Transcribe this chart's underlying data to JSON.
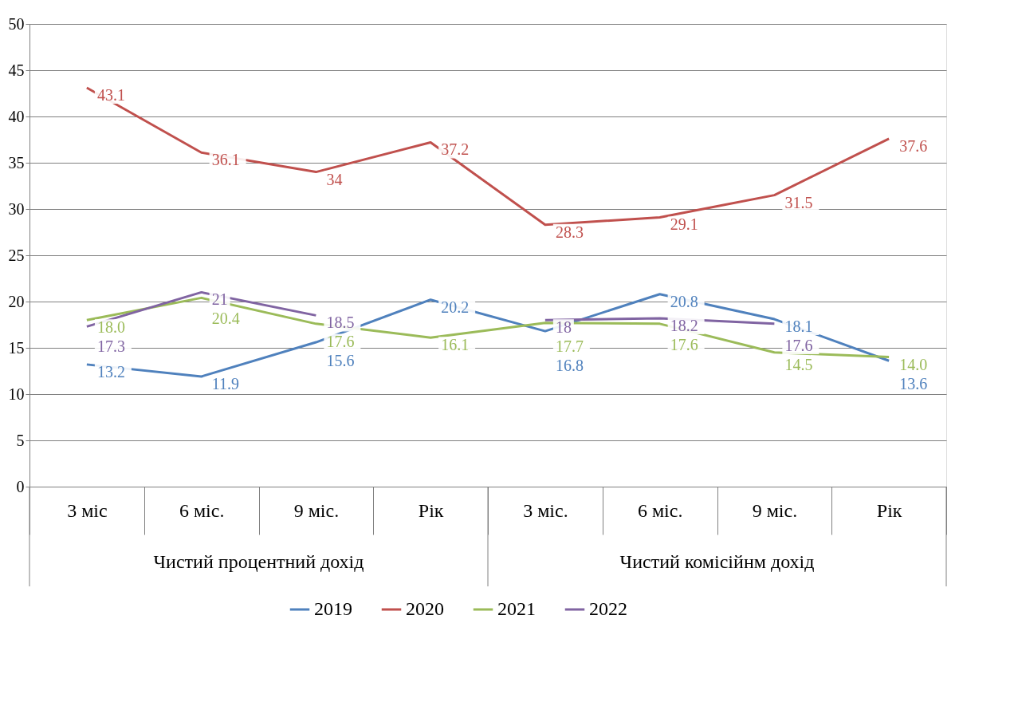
{
  "chart_data": {
    "type": "line",
    "categories": [
      "3 міс",
      "6 міс.",
      "9 міс.",
      "Рік",
      "3 міс.",
      "6 міс.",
      "9 міс.",
      "Рік"
    ],
    "series": [
      {
        "name": "2019",
        "color": "#4f81bd",
        "values": [
          13.2,
          11.9,
          15.6,
          20.2,
          16.8,
          20.8,
          18.1,
          13.6
        ],
        "value_labels": [
          "13.2",
          "11.9",
          "15.6",
          "20.2",
          "16.8",
          "20.8",
          "18.1",
          "13.6"
        ]
      },
      {
        "name": "2020",
        "color": "#c0504d",
        "values": [
          43.1,
          36.1,
          34,
          37.2,
          28.3,
          29.1,
          31.5,
          37.6
        ],
        "value_labels": [
          "43.1",
          "36.1",
          "34",
          "37.2",
          "28.3",
          "29.1",
          "31.5",
          "37.6"
        ]
      },
      {
        "name": "2021",
        "color": "#9bbb59",
        "values": [
          18.0,
          20.4,
          17.6,
          16.1,
          17.7,
          17.6,
          14.5,
          14.0
        ],
        "value_labels": [
          "18.0",
          "20.4",
          "17.6",
          "16.1",
          "17.7",
          "17.6",
          "14.5",
          "14.0"
        ]
      },
      {
        "name": "2022",
        "color": "#8064a2",
        "values": [
          17.3,
          21,
          18.5,
          null,
          18,
          18.2,
          17.6,
          null
        ],
        "value_labels": [
          "17.3",
          "21",
          "18.5",
          null,
          "18",
          "18.2",
          "17.6",
          null
        ]
      }
    ],
    "annotations": [
      "Чистий процентний дохід",
      "Чистий комісійнм дохід"
    ],
    "ylim": [
      0,
      50
    ],
    "yticks": [
      0,
      5,
      10,
      15,
      20,
      25,
      30,
      35,
      40,
      45,
      50
    ],
    "grid": "y",
    "legend": "bottom",
    "marker": "none",
    "line_style": "solid"
  }
}
